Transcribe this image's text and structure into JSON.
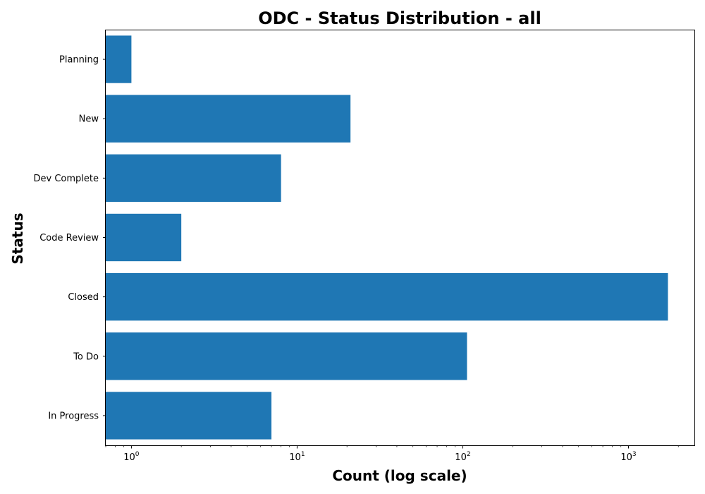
{
  "chart_data": {
    "type": "bar",
    "orientation": "horizontal",
    "title": "ODC - Status Distribution - all",
    "xlabel": "Count (log scale)",
    "ylabel": "Status",
    "x_scale": "log",
    "xlim": [
      0.7,
      2500
    ],
    "x_ticks": [
      {
        "value": 1,
        "base": "10",
        "exp": "0"
      },
      {
        "value": 10,
        "base": "10",
        "exp": "1"
      },
      {
        "value": 100,
        "base": "10",
        "exp": "2"
      },
      {
        "value": 1000,
        "base": "10",
        "exp": "3"
      }
    ],
    "categories": [
      "Planning",
      "New",
      "Dev Complete",
      "Code Review",
      "Closed",
      "To Do",
      "In Progress"
    ],
    "values": [
      1,
      21,
      8,
      2,
      1730,
      106,
      7
    ],
    "bar_color": "#1f77b4",
    "grid": false,
    "legend": "none"
  }
}
